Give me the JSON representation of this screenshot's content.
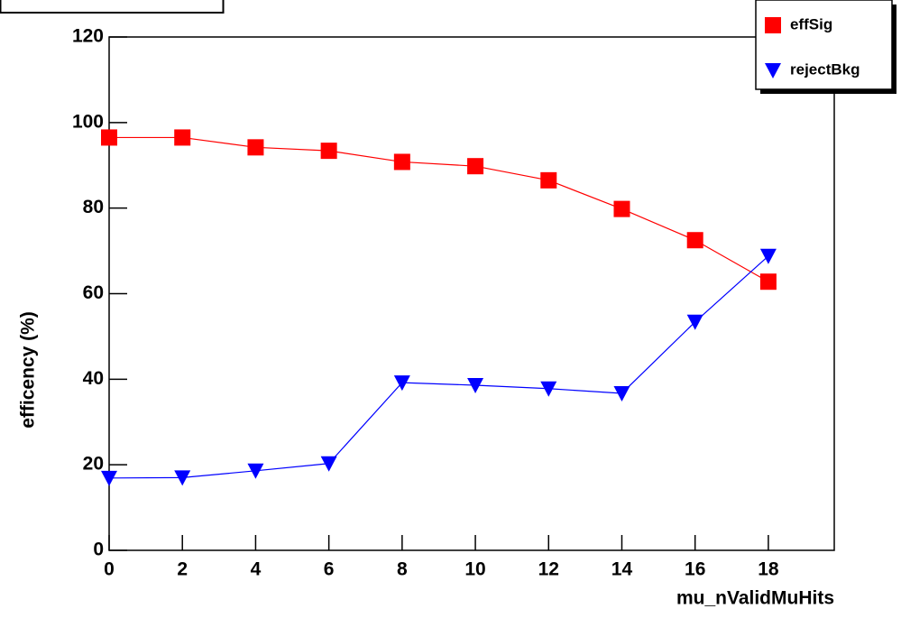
{
  "chart_data": {
    "type": "line",
    "x_label": "mu_nValidMuHits",
    "y_label": "efficency (%)",
    "x": [
      0,
      2,
      4,
      6,
      8,
      10,
      12,
      14,
      16,
      18
    ],
    "series": [
      {
        "name": "effSig",
        "color": "#ff0000",
        "marker": "square",
        "values": [
          96.5,
          96.5,
          94.2,
          93.4,
          90.8,
          89.8,
          86.5,
          79.8,
          72.5,
          62.8
        ]
      },
      {
        "name": "rejectBkg",
        "color": "#0000ff",
        "marker": "triangle-down",
        "values": [
          16.9,
          17.0,
          18.6,
          20.3,
          39.2,
          38.6,
          37.8,
          36.7,
          53.4,
          68.8
        ]
      }
    ],
    "xlim": [
      0,
      19.8
    ],
    "ylim": [
      0,
      120
    ],
    "xticks": [
      0,
      2,
      4,
      6,
      8,
      10,
      12,
      14,
      16,
      18
    ],
    "yticks": [
      0,
      20,
      40,
      60,
      80,
      100,
      120
    ],
    "legend": "top-right"
  }
}
